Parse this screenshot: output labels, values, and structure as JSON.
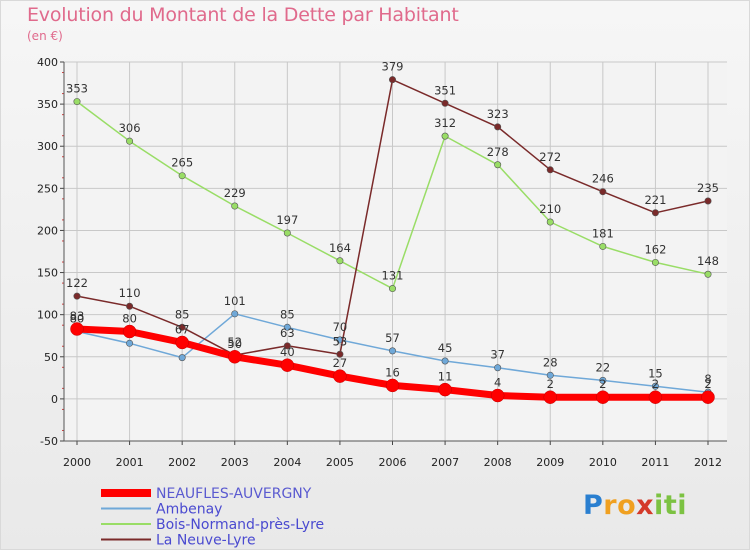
{
  "title": "Evolution du Montant de la Dette par Habitant",
  "subtitle": "(en €)",
  "brand": {
    "letters": [
      {
        "ch": "P",
        "color": "#2a7fd0"
      },
      {
        "ch": "r",
        "color": "#f0a020"
      },
      {
        "ch": "o",
        "color": "#f0a020"
      },
      {
        "ch": "x",
        "color": "#d43a2a"
      },
      {
        "ch": "i",
        "color": "#7cc242"
      },
      {
        "ch": "t",
        "color": "#7cc242"
      },
      {
        "ch": "i",
        "color": "#7cc242"
      }
    ]
  },
  "chart_data": {
    "type": "line",
    "title": "Evolution du Montant de la Dette par Habitant",
    "subtitle": "(en €)",
    "x": [
      "2000",
      "2001",
      "2002",
      "2003",
      "2004",
      "2005",
      "2006",
      "2007",
      "2008",
      "2009",
      "2010",
      "2011",
      "2012"
    ],
    "ylim": [
      -50,
      400
    ],
    "yticks": [
      -50,
      0,
      50,
      100,
      150,
      200,
      250,
      300,
      350,
      400
    ],
    "grid": true,
    "legend_position": "bottom-left",
    "series": [
      {
        "name": "NEAUFLES-AUVERGNY",
        "color": "#ff0000",
        "emphasis": true,
        "values": [
          83,
          80,
          67,
          50,
          40,
          27,
          16,
          11,
          4,
          2,
          2,
          2,
          2
        ],
        "labels": [
          "83",
          "80",
          "67",
          "50",
          "40",
          "27",
          "16",
          "11",
          "4",
          "2",
          "2",
          "2",
          "2"
        ]
      },
      {
        "name": "Ambenay",
        "color": "#6fa8d8",
        "emphasis": false,
        "values": [
          80,
          66,
          49,
          101,
          85,
          70,
          57,
          45,
          37,
          28,
          22,
          15,
          8
        ],
        "labels": [
          "80",
          "",
          "",
          "101",
          "85",
          "70",
          "57",
          "45",
          "37",
          "28",
          "22",
          "15",
          "8"
        ]
      },
      {
        "name": "Bois-Normand-près-Lyre",
        "color": "#99dd66",
        "emphasis": false,
        "values": [
          353,
          306,
          265,
          229,
          197,
          164,
          131,
          312,
          278,
          210,
          181,
          162,
          148
        ],
        "labels": [
          "353",
          "306",
          "265",
          "229",
          "197",
          "164",
          "131",
          "312",
          "278",
          "210",
          "181",
          "162",
          "148"
        ]
      },
      {
        "name": "La Neuve-Lyre",
        "color": "#7a2a2a",
        "emphasis": false,
        "values": [
          122,
          110,
          85,
          52,
          63,
          53,
          379,
          351,
          323,
          272,
          246,
          221,
          235
        ],
        "labels": [
          "122",
          "110",
          "85",
          "52",
          "63",
          "53",
          "379",
          "351",
          "323",
          "272",
          "246",
          "221",
          "235"
        ]
      }
    ]
  }
}
